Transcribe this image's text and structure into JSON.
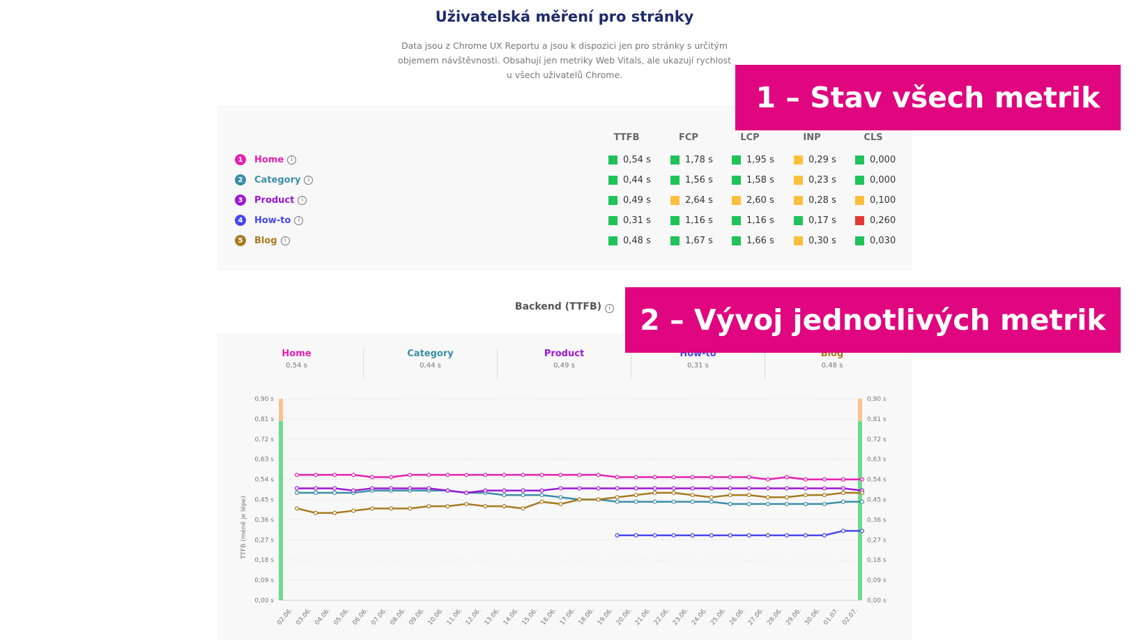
{
  "header": {
    "title": "Uživatelská měření pro stránky",
    "intro": "Data jsou z Chrome UX Reportu a jsou k dispozici jen pro stránky s určitým objemem návštěvnosti. Obsahují jen metriky Web Vitals, ale ukazují rychlost u všech uživatelů Chrome."
  },
  "callouts": {
    "one": "1 – Stav všech metrik",
    "two": "2 – Vývoj jednotlivých metrik"
  },
  "colors": {
    "good": "#1fc35a",
    "needs_improvement": "#fbbf3c",
    "poor": "#e53935",
    "callout": "#e0067f"
  },
  "summary": {
    "columns": [
      "TTFB",
      "FCP",
      "LCP",
      "INP",
      "CLS"
    ],
    "rows": [
      {
        "num": "1",
        "label": "Home",
        "color": "#e61fb0",
        "values": [
          "0,54 s",
          "1,78 s",
          "1,95 s",
          "0,29 s",
          "0,000"
        ],
        "status": [
          "good",
          "good",
          "good",
          "needs_improvement",
          "good"
        ]
      },
      {
        "num": "2",
        "label": "Category",
        "color": "#3b8ea5",
        "values": [
          "0,44 s",
          "1,56 s",
          "1,58 s",
          "0,23 s",
          "0,000"
        ],
        "status": [
          "good",
          "good",
          "good",
          "needs_improvement",
          "good"
        ]
      },
      {
        "num": "3",
        "label": "Product",
        "color": "#9b17d8",
        "values": [
          "0,49 s",
          "2,64 s",
          "2,60 s",
          "0,28 s",
          "0,100"
        ],
        "status": [
          "good",
          "needs_improvement",
          "needs_improvement",
          "needs_improvement",
          "needs_improvement"
        ]
      },
      {
        "num": "4",
        "label": "How-to",
        "color": "#4747ee",
        "values": [
          "0,31 s",
          "1,16 s",
          "1,16 s",
          "0,17 s",
          "0,260"
        ],
        "status": [
          "good",
          "good",
          "good",
          "good",
          "poor"
        ]
      },
      {
        "num": "5",
        "label": "Blog",
        "color": "#a87a20",
        "values": [
          "0,48 s",
          "1,67 s",
          "1,66 s",
          "0,30 s",
          "0,030"
        ],
        "status": [
          "good",
          "good",
          "good",
          "needs_improvement",
          "good"
        ]
      }
    ]
  },
  "trend": {
    "title": "Backend (TTFB)",
    "cards": [
      {
        "label": "Home",
        "value": "0,54 s"
      },
      {
        "label": "Category",
        "value": "0,44 s"
      },
      {
        "label": "Product",
        "value": "0,49 s"
      },
      {
        "label": "How-to",
        "value": "0,31 s"
      },
      {
        "label": "Blog",
        "value": "0,48 s"
      }
    ]
  },
  "chart_data": {
    "type": "line",
    "ylabel": "TTFB (méně je lépe)",
    "ylim": [
      0,
      0.9
    ],
    "y_ticks": [
      "0,00 s",
      "0,09 s",
      "0,18 s",
      "0,27 s",
      "0,36 s",
      "0,45 s",
      "0,54 s",
      "0,63 s",
      "0,72 s",
      "0,81 s",
      "0,90 s"
    ],
    "thresholds": {
      "good_max": 0.8,
      "needs_improvement_color": "#f9c48c",
      "good_color": "#6ddb8f"
    },
    "grid": true,
    "x": [
      "02.06.",
      "03.06.",
      "04.06.",
      "05.06.",
      "06.06.",
      "07.06.",
      "08.06.",
      "09.06.",
      "10.06.",
      "11.06.",
      "12.06.",
      "13.06.",
      "14.06.",
      "15.06.",
      "16.06.",
      "17.06.",
      "18.06.",
      "19.06.",
      "20.06.",
      "21.06.",
      "22.06.",
      "23.06.",
      "24.06.",
      "25.06.",
      "26.06.",
      "27.06.",
      "28.06.",
      "29.06.",
      "30.06.",
      "01.07.",
      "02.07."
    ],
    "series": [
      {
        "name": "Home",
        "color": "#e61fb0",
        "values": [
          0.56,
          0.56,
          0.56,
          0.56,
          0.55,
          0.55,
          0.56,
          0.56,
          0.56,
          0.56,
          0.56,
          0.56,
          0.56,
          0.56,
          0.56,
          0.56,
          0.56,
          0.55,
          0.55,
          0.55,
          0.55,
          0.55,
          0.55,
          0.55,
          0.55,
          0.54,
          0.55,
          0.54,
          0.54,
          0.54,
          0.54
        ]
      },
      {
        "name": "Category",
        "color": "#3b8ea5",
        "values": [
          0.48,
          0.48,
          0.48,
          0.48,
          0.49,
          0.49,
          0.49,
          0.49,
          0.49,
          0.48,
          0.48,
          0.47,
          0.47,
          0.47,
          0.46,
          0.45,
          0.45,
          0.44,
          0.44,
          0.44,
          0.44,
          0.44,
          0.44,
          0.43,
          0.43,
          0.43,
          0.43,
          0.43,
          0.43,
          0.44,
          0.44
        ]
      },
      {
        "name": "Product",
        "color": "#9b17d8",
        "values": [
          0.5,
          0.5,
          0.5,
          0.49,
          0.5,
          0.5,
          0.5,
          0.5,
          0.49,
          0.48,
          0.49,
          0.49,
          0.49,
          0.49,
          0.5,
          0.5,
          0.5,
          0.5,
          0.5,
          0.5,
          0.5,
          0.5,
          0.5,
          0.5,
          0.5,
          0.5,
          0.5,
          0.5,
          0.5,
          0.5,
          0.49
        ]
      },
      {
        "name": "How-to",
        "color": "#4747ee",
        "values": [
          null,
          null,
          null,
          null,
          null,
          null,
          null,
          null,
          null,
          null,
          null,
          null,
          null,
          null,
          null,
          null,
          null,
          0.29,
          0.29,
          0.29,
          0.29,
          0.29,
          0.29,
          0.29,
          0.29,
          0.29,
          0.29,
          0.29,
          0.29,
          0.31,
          0.31
        ]
      },
      {
        "name": "Blog",
        "color": "#a87a20",
        "values": [
          0.41,
          0.39,
          0.39,
          0.4,
          0.41,
          0.41,
          0.41,
          0.42,
          0.42,
          0.43,
          0.42,
          0.42,
          0.41,
          0.44,
          0.43,
          0.45,
          0.45,
          0.46,
          0.47,
          0.48,
          0.48,
          0.47,
          0.46,
          0.47,
          0.47,
          0.46,
          0.46,
          0.47,
          0.47,
          0.48,
          0.48
        ]
      }
    ]
  }
}
